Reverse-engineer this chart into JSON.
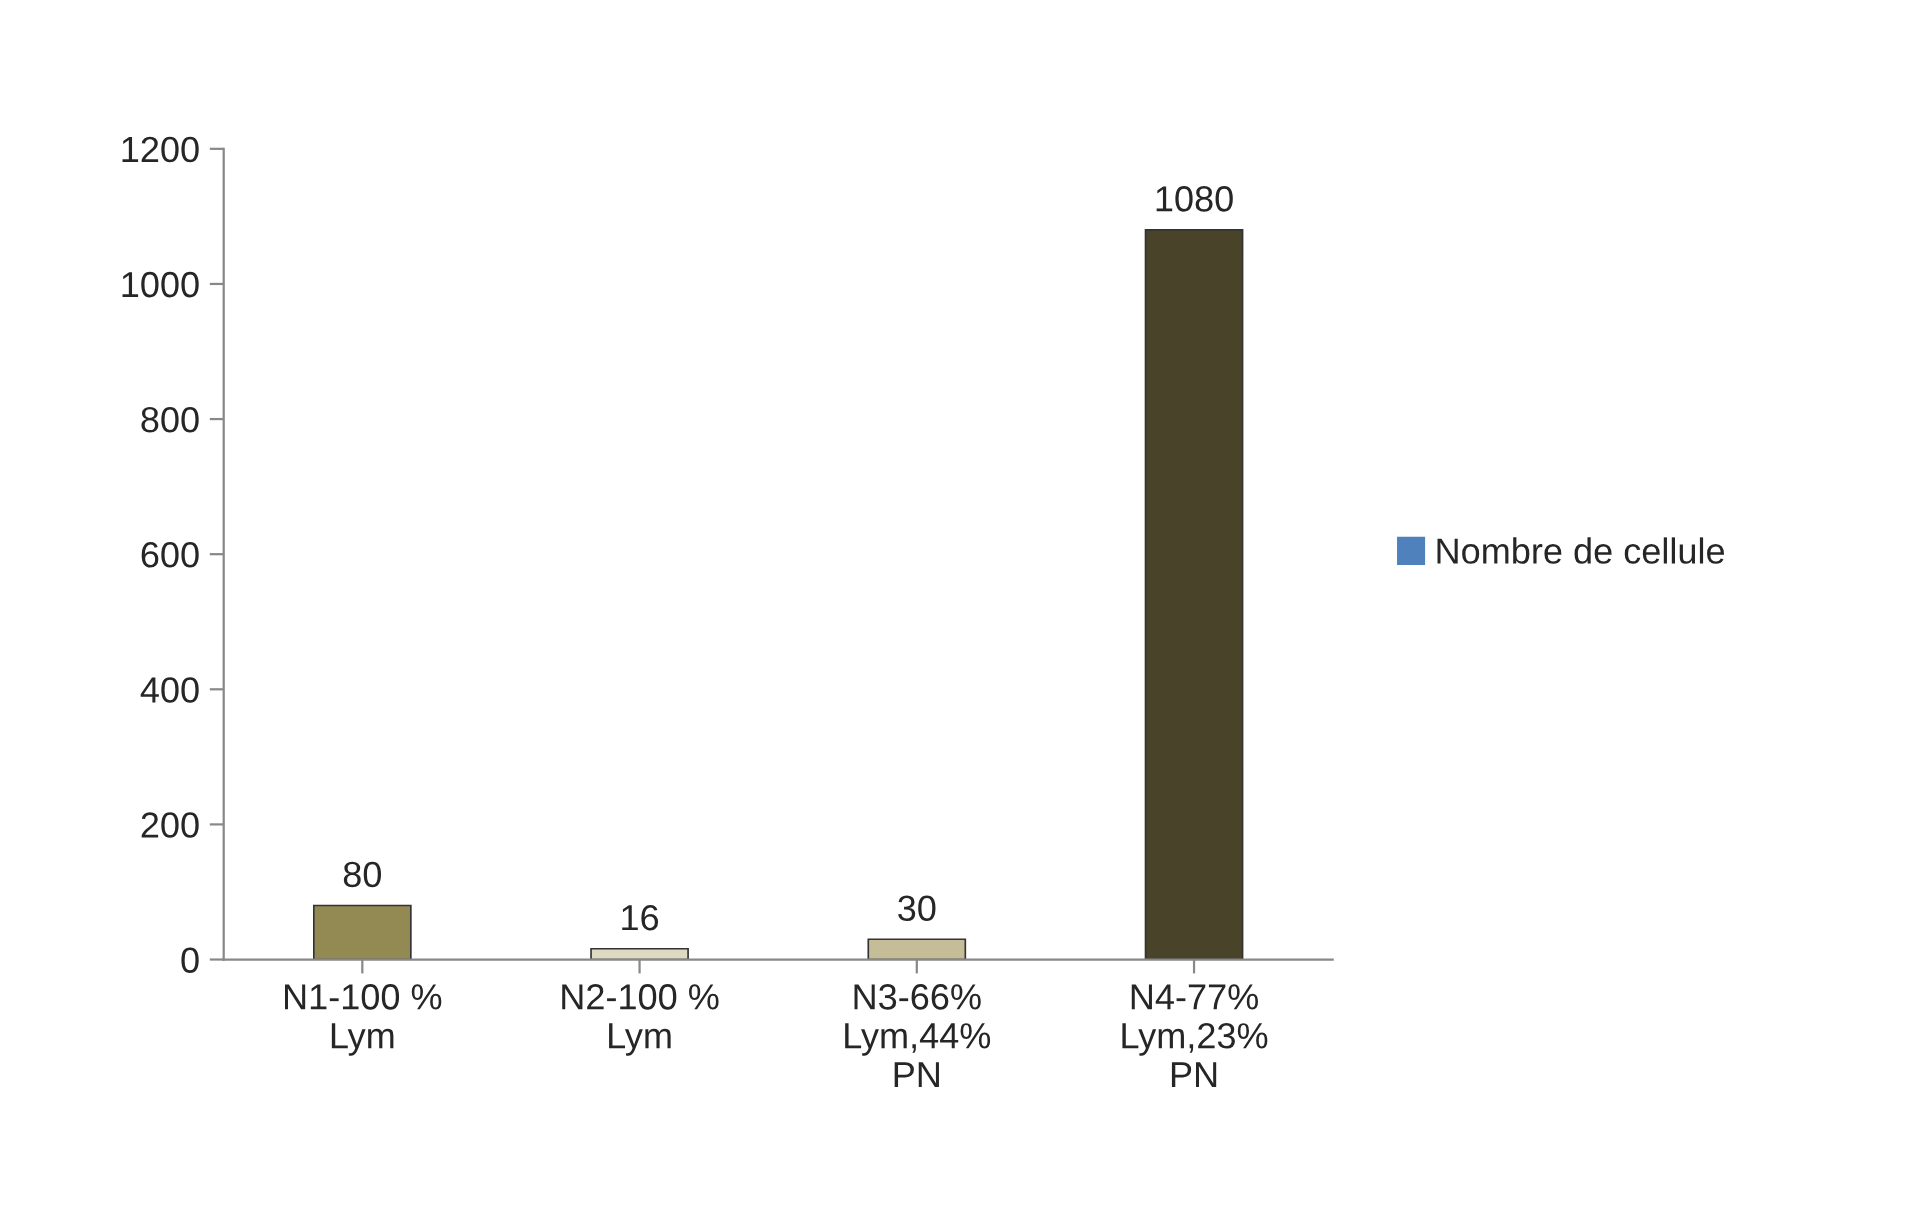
{
  "chart_data": {
    "type": "bar",
    "categories": [
      "N1-100 %\nLym",
      "N2-100 %\nLym",
      "N3-66%\nLym,44%\nPN",
      "N4-77%\nLym,23%\nPN"
    ],
    "series": [
      {
        "name": "Nombre de cellule",
        "color": "#4f81bd",
        "colors": [
          "#938953",
          "#ddd9c3",
          "#c4bd97",
          "#494429"
        ],
        "values": [
          80,
          16,
          30,
          1080
        ]
      }
    ],
    "ylim": [
      0,
      1200
    ],
    "yticks": [
      0,
      200,
      400,
      600,
      800,
      1000,
      1200
    ],
    "data_labels": true,
    "grid": false,
    "legend": "right"
  }
}
